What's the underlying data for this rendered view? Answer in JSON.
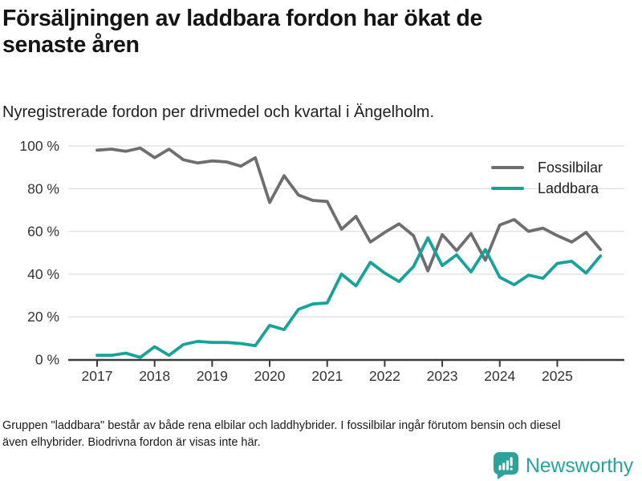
{
  "header": {
    "title": "Försäljningen av laddbara fordon har ökat de senaste åren",
    "subtitle": "Nyregistrerade fordon per drivmedel och kvartal i Ängelholm."
  },
  "footer": {
    "note": "Gruppen \"laddbara\" består av både rena elbilar och laddhybrider. I fossilbilar ingår förutom bensin och diesel även elhybrider. Biodrivna fordon är visas inte här.",
    "brand_name": "Newsworthy",
    "brand_color": "#2da29a"
  },
  "chart_data": {
    "type": "line",
    "title": "Försäljningen av laddbara fordon har ökat de senaste åren",
    "subtitle": "Nyregistrerade fordon per drivmedel och kvartal i Ängelholm.",
    "x_axis": {
      "start": "2017 Q1",
      "end": "2025 Q4",
      "interval": "quarter"
    },
    "x_tick_labels": [
      "2017",
      "2018",
      "2019",
      "2020",
      "2021",
      "2022",
      "2023",
      "2024",
      "2025"
    ],
    "y_ticks": [
      0,
      20,
      40,
      60,
      80,
      100
    ],
    "y_tick_labels": [
      "0 %",
      "20 %",
      "40 %",
      "60 %",
      "80 %",
      "100 %"
    ],
    "ylim": [
      0,
      100
    ],
    "unit": "percent",
    "grid": true,
    "legend_position": "top-right",
    "axis_color": "#3a3a3a",
    "grid_color": "#e4e4e4",
    "tick_label_color": "#333333",
    "series": [
      {
        "name": "Fossilbilar",
        "color": "#6e6e6e",
        "values": [
          98,
          98.5,
          97.5,
          99,
          94.5,
          98.5,
          93.5,
          92,
          93,
          92.5,
          90.5,
          94.5,
          73.5,
          86,
          77,
          74.5,
          74,
          61,
          67,
          55,
          59.5,
          63.5,
          58,
          41.5,
          58.5,
          51,
          59,
          46.5,
          63,
          65.5,
          60,
          61.5,
          58,
          55,
          59.5,
          51.5
        ]
      },
      {
        "name": "Laddbara",
        "color": "#17a29a",
        "values": [
          2,
          2,
          3,
          1,
          6,
          2,
          7,
          8.5,
          8,
          8,
          7.5,
          6.5,
          16,
          14,
          23.5,
          26,
          26.5,
          40,
          34.5,
          45.5,
          40.5,
          36.5,
          43.5,
          57,
          44,
          49,
          41,
          51.5,
          38.5,
          35,
          39.5,
          38,
          45,
          46,
          40.5,
          48.5
        ]
      }
    ]
  }
}
